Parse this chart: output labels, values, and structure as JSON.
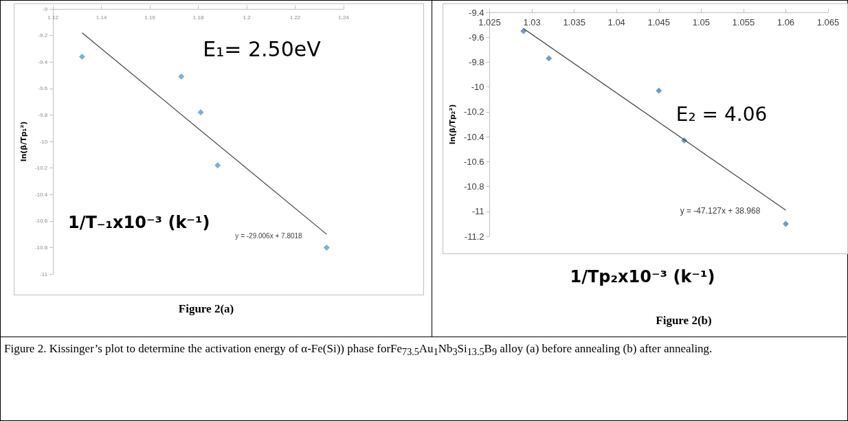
{
  "chart_data": [
    {
      "type": "scatter",
      "xlabel": "1/T₋₁x10⁻³ (k⁻¹)",
      "ylabel": "ln(β/Tp₁²)",
      "x": [
        1.132,
        1.173,
        1.181,
        1.188,
        1.233
      ],
      "series": [
        {
          "color": "#5b9bd5",
          "marker": "diamond",
          "values": [
            -9.36,
            -9.51,
            -9.78,
            -10.18,
            -10.8
          ]
        },
        {
          "type": "line",
          "x": [
            1.132,
            1.233
          ],
          "values": [
            -9.18,
            -10.7
          ],
          "color": "#404040",
          "marker": "none"
        }
      ],
      "xlim": [
        1.12,
        1.24
      ],
      "xticks": [
        1.12,
        1.14,
        1.16,
        1.18,
        1.2,
        1.22,
        1.24
      ],
      "ylim": [
        -11,
        -9
      ],
      "yticks": [
        -11,
        -10.8,
        -10.6,
        -10.4,
        -10.2,
        -10,
        -9.8,
        -9.6,
        -9.4,
        -9.2,
        -9
      ],
      "grid": false,
      "annotations": [
        "E₁= 2.50eV",
        "y = -29.006x + 7.8018",
        "Figure 2(a)"
      ]
    },
    {
      "type": "scatter",
      "xlabel": "1/Tp₂x10⁻³ (k⁻¹)",
      "ylabel": "ln(β/Tp₂²)",
      "x": [
        1.029,
        1.032,
        1.045,
        1.048,
        1.06
      ],
      "series": [
        {
          "color": "#4f81bd",
          "marker": "diamond",
          "values": [
            -9.55,
            -9.77,
            -10.03,
            -10.43,
            -11.1
          ]
        },
        {
          "type": "line",
          "x": [
            1.029,
            1.06
          ],
          "values": [
            -9.53,
            -10.99
          ],
          "color": "#404040",
          "marker": "none"
        }
      ],
      "xlim": [
        1.025,
        1.065
      ],
      "xticks": [
        1.025,
        1.03,
        1.035,
        1.04,
        1.045,
        1.05,
        1.055,
        1.06,
        1.065
      ],
      "ylim": [
        -11.2,
        -9.4
      ],
      "yticks": [
        -11.2,
        -11,
        -10.8,
        -10.6,
        -10.4,
        -10.2,
        -10,
        -9.8,
        -9.6,
        -9.4
      ],
      "grid": false,
      "annotations": [
        "E₂ = 4.06",
        "y = -47.127x + 38.968",
        "Figure 2(b)",
        "Figure 2. Kissinger’s plot to determine the activation energy of α-Fe(Si)) phase forFe$_{73.5}$Au$_{1}$Nb$_{3}$Si$_{13.5}$B$_{9}$ alloy (a) before annealing (b) after annealing."
      ]
    }
  ]
}
